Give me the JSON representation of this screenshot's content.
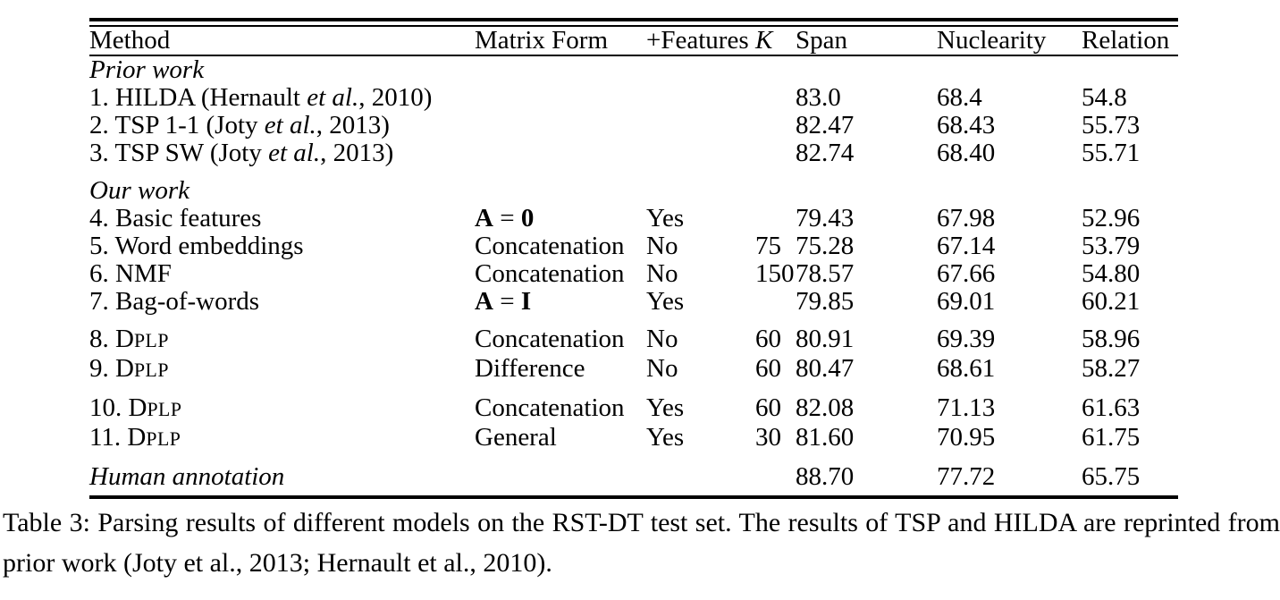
{
  "table": {
    "columns": [
      "Method",
      "Matrix Form",
      "+Features",
      "K",
      "Span",
      "Nuclearity",
      "Relation"
    ],
    "groups": [
      {
        "rows": [
          {
            "method": [
              {
                "t": "Prior work",
                "s": "i"
              }
            ],
            "matrix": [],
            "features": "",
            "k": "",
            "span": "",
            "nuclearity": "",
            "relation": "",
            "bold": []
          },
          {
            "method": [
              {
                "t": "1. HILDA (Hernault "
              },
              {
                "t": "et al.",
                "s": "i"
              },
              {
                "t": ", 2010)"
              }
            ],
            "matrix": [],
            "features": "",
            "k": "",
            "span": "83.0",
            "nuclearity": "68.4",
            "relation": "54.8",
            "bold": [
              "span"
            ]
          },
          {
            "method": [
              {
                "t": "2. TSP 1-1 (Joty "
              },
              {
                "t": "et al.",
                "s": "i"
              },
              {
                "t": ", 2013)"
              }
            ],
            "matrix": [],
            "features": "",
            "k": "",
            "span": "82.47",
            "nuclearity": "68.43",
            "relation": "55.73",
            "bold": []
          },
          {
            "method": [
              {
                "t": "3. TSP SW (Joty "
              },
              {
                "t": "et al.",
                "s": "i"
              },
              {
                "t": ", 2013)"
              }
            ],
            "matrix": [],
            "features": "",
            "k": "",
            "span": "82.74",
            "nuclearity": "68.40",
            "relation": "55.71",
            "bold": []
          }
        ]
      },
      {
        "rows": [
          {
            "method": [
              {
                "t": "Our work",
                "s": "i"
              }
            ],
            "matrix": [],
            "features": "",
            "k": "",
            "span": "",
            "nuclearity": "",
            "relation": "",
            "bold": []
          },
          {
            "method": [
              {
                "t": "4. Basic features"
              }
            ],
            "matrix": [
              {
                "t": "A",
                "s": "b"
              },
              {
                "t": " = "
              },
              {
                "t": "0",
                "s": "b"
              }
            ],
            "features": "Yes",
            "k": "",
            "span": "79.43",
            "nuclearity": "67.98",
            "relation": "52.96",
            "bold": []
          },
          {
            "method": [
              {
                "t": "5. Word embeddings"
              }
            ],
            "matrix": [
              {
                "t": "Concatenation"
              }
            ],
            "features": "No",
            "k": "75",
            "span": "75.28",
            "nuclearity": "67.14",
            "relation": "53.79",
            "bold": []
          },
          {
            "method": [
              {
                "t": "6. NMF"
              }
            ],
            "matrix": [
              {
                "t": "Concatenation"
              }
            ],
            "features": "No",
            "k": "150",
            "span": "78.57",
            "nuclearity": "67.66",
            "relation": "54.80",
            "bold": []
          },
          {
            "method": [
              {
                "t": "7. Bag-of-words"
              }
            ],
            "matrix": [
              {
                "t": "A",
                "s": "b"
              },
              {
                "t": " = "
              },
              {
                "t": "I",
                "s": "b"
              }
            ],
            "features": "Yes",
            "k": "",
            "span": "79.85",
            "nuclearity": "69.01",
            "relation": "60.21",
            "bold": []
          }
        ]
      },
      {
        "rows": [
          {
            "method": [
              {
                "t": "8. D"
              },
              {
                "t": "PLP",
                "s": "sc"
              }
            ],
            "matrix": [
              {
                "t": "Concatenation"
              }
            ],
            "features": "No",
            "k": "60",
            "span": "80.91",
            "nuclearity": "69.39",
            "relation": "58.96",
            "bold": []
          },
          {
            "method": [
              {
                "t": "9. D"
              },
              {
                "t": "PLP",
                "s": "sc"
              }
            ],
            "matrix": [
              {
                "t": "Difference"
              }
            ],
            "features": "No",
            "k": "60",
            "span": "80.47",
            "nuclearity": "68.61",
            "relation": "58.27",
            "bold": []
          }
        ]
      },
      {
        "rows": [
          {
            "method": [
              {
                "t": "10. D"
              },
              {
                "t": "PLP",
                "s": "sc"
              }
            ],
            "matrix": [
              {
                "t": "Concatenation"
              }
            ],
            "features": "Yes",
            "k": "60",
            "span": "82.08",
            "nuclearity": "71.13",
            "relation": "61.63",
            "bold": [
              "nuclearity",
              "relation"
            ]
          },
          {
            "method": [
              {
                "t": "11. D"
              },
              {
                "t": "PLP",
                "s": "sc"
              }
            ],
            "matrix": [
              {
                "t": "General"
              }
            ],
            "features": "Yes",
            "k": "30",
            "span": "81.60",
            "nuclearity": "70.95",
            "relation": "61.75",
            "bold": [
              "nuclearity",
              "relation"
            ]
          }
        ]
      },
      {
        "rows": [
          {
            "method": [
              {
                "t": "Human annotation",
                "s": "i"
              }
            ],
            "matrix": [],
            "features": "",
            "k": "",
            "span": "88.70",
            "nuclearity": "77.72",
            "relation": "65.75",
            "bold": []
          }
        ]
      }
    ]
  },
  "caption": {
    "text": "Table 3: Parsing results of different models on the RST-DT test set. The results of TSP and HILDA are reprinted from prior work (Joty et al., 2013; Hernault et al., 2010)."
  }
}
